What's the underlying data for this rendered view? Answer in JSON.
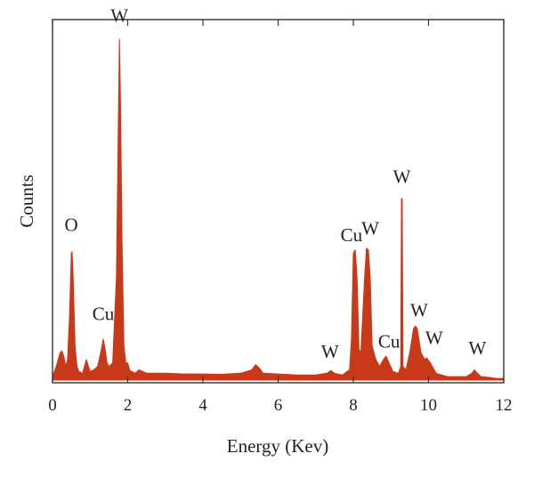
{
  "chart_data": {
    "type": "area",
    "title": "",
    "xlabel": "Energy (Kev)",
    "ylabel": "Counts",
    "xlim": [
      0,
      12
    ],
    "ylim": [
      0,
      1.0
    ],
    "x_ticks": [
      0,
      2,
      4,
      6,
      8,
      10,
      12
    ],
    "y_ticks_shown": false,
    "grid": false,
    "fill_color": "#c8391a",
    "series": [
      {
        "name": "",
        "x": [
          0.0,
          0.1,
          0.2,
          0.25,
          0.3,
          0.35,
          0.4,
          0.45,
          0.5,
          0.52,
          0.55,
          0.6,
          0.65,
          0.7,
          0.8,
          0.9,
          1.0,
          1.1,
          1.2,
          1.3,
          1.35,
          1.4,
          1.45,
          1.5,
          1.6,
          1.7,
          1.75,
          1.78,
          1.81,
          1.85,
          1.9,
          1.95,
          2.0,
          2.05,
          2.1,
          2.2,
          2.3,
          2.5,
          3.0,
          3.5,
          4.0,
          4.5,
          5.0,
          5.3,
          5.4,
          5.5,
          5.6,
          6.0,
          6.5,
          7.0,
          7.3,
          7.4,
          7.5,
          7.7,
          7.9,
          7.95,
          8.0,
          8.05,
          8.1,
          8.15,
          8.2,
          8.3,
          8.35,
          8.4,
          8.45,
          8.5,
          8.6,
          8.7,
          8.8,
          8.87,
          8.95,
          9.05,
          9.2,
          9.26,
          9.28,
          9.29,
          9.3,
          9.32,
          9.4,
          9.5,
          9.6,
          9.65,
          9.7,
          9.8,
          9.9,
          9.95,
          10.05,
          10.2,
          10.5,
          11.0,
          11.15,
          11.22,
          11.3,
          11.4,
          11.6,
          11.8,
          12.0
        ],
        "y": [
          0.01,
          0.04,
          0.08,
          0.085,
          0.07,
          0.04,
          0.06,
          0.18,
          0.37,
          0.375,
          0.3,
          0.1,
          0.04,
          0.025,
          0.02,
          0.06,
          0.025,
          0.03,
          0.04,
          0.09,
          0.12,
          0.09,
          0.05,
          0.04,
          0.05,
          0.3,
          0.75,
          0.995,
          0.8,
          0.4,
          0.1,
          0.05,
          0.05,
          0.03,
          0.025,
          0.02,
          0.03,
          0.02,
          0.02,
          0.018,
          0.018,
          0.017,
          0.02,
          0.03,
          0.045,
          0.035,
          0.02,
          0.018,
          0.015,
          0.015,
          0.02,
          0.028,
          0.02,
          0.015,
          0.03,
          0.12,
          0.37,
          0.38,
          0.3,
          0.09,
          0.08,
          0.3,
          0.385,
          0.38,
          0.3,
          0.1,
          0.06,
          0.04,
          0.06,
          0.07,
          0.05,
          0.025,
          0.02,
          0.04,
          0.53,
          0.53,
          0.53,
          0.04,
          0.03,
          0.08,
          0.15,
          0.158,
          0.15,
          0.08,
          0.06,
          0.065,
          0.05,
          0.02,
          0.01,
          0.01,
          0.02,
          0.03,
          0.02,
          0.01,
          0.008,
          0.005,
          0.005
        ]
      }
    ],
    "annotations": [
      {
        "text": "O",
        "x": 0.5,
        "y": 0.43
      },
      {
        "text": "W",
        "x": 1.78,
        "y": 1.04
      },
      {
        "text": "Cu",
        "x": 1.35,
        "y": 0.17
      },
      {
        "text": "W",
        "x": 7.38,
        "y": 0.06
      },
      {
        "text": "Cu",
        "x": 7.95,
        "y": 0.4
      },
      {
        "text": "W",
        "x": 8.45,
        "y": 0.42
      },
      {
        "text": "W",
        "x": 9.29,
        "y": 0.57
      },
      {
        "text": "Cu",
        "x": 8.95,
        "y": 0.09
      },
      {
        "text": "W",
        "x": 9.75,
        "y": 0.18
      },
      {
        "text": "W",
        "x": 10.15,
        "y": 0.1
      },
      {
        "text": "W",
        "x": 11.3,
        "y": 0.07
      }
    ]
  }
}
